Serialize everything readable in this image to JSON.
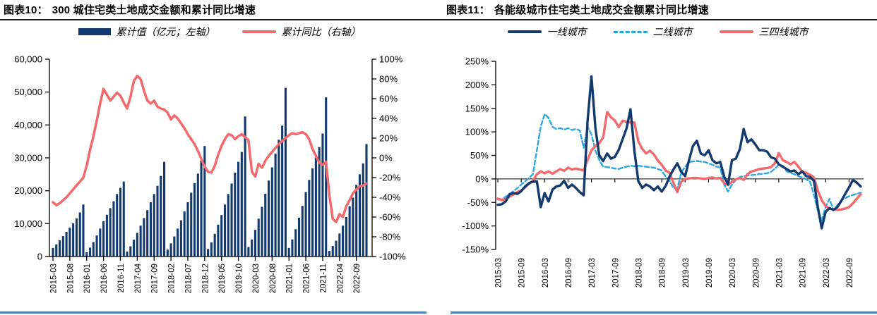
{
  "colors": {
    "navy": "#123a6e",
    "red": "#f4696b",
    "lightblue": "#2ba8e0",
    "axis": "#000000",
    "title_underline": "#1a1a1a",
    "panel_bottom_border": "#4d7ebc"
  },
  "panels": [
    {
      "title_prefix": "图表10：",
      "title": "300 城住宅类土地成交金额和累计同比增速",
      "legend": [
        {
          "label": "累计值（亿元；左轴）",
          "swatch": "bar",
          "color_key": "navy"
        },
        {
          "label": "累计同比（右轴）",
          "swatch": "line",
          "color_key": "red"
        }
      ],
      "chart_data": {
        "type": "bar",
        "subtype": "combo-bar-line",
        "x_tick_labels": [
          "2015-03",
          "2015-08",
          "2016-01",
          "2016-06",
          "2016-11",
          "2017-04",
          "2017-09",
          "2018-02",
          "2018-07",
          "2018-12",
          "2019-05",
          "2019-10",
          "2020-03",
          "2020-08",
          "2021-01",
          "2021-06",
          "2021-11",
          "2022-04",
          "2022-09"
        ],
        "x_tick_every": 5,
        "left_axis": {
          "min": 0,
          "max": 60000,
          "step": 10000,
          "tick_labels": [
            "60,000",
            "50,000",
            "40,000",
            "30,000",
            "20,000",
            "10,000",
            "0"
          ]
        },
        "right_axis": {
          "min": -100,
          "max": 100,
          "step": 20,
          "tick_labels": [
            "100%",
            "80%",
            "60%",
            "40%",
            "20%",
            "0%",
            "-20%",
            "-40%",
            "-60%",
            "-80%",
            "-100%"
          ]
        },
        "bar_series": {
          "name": "累计值（亿元；左轴）",
          "axis": "left",
          "color_key": "navy",
          "values": [
            2600,
            3700,
            4900,
            6200,
            7500,
            8800,
            10100,
            11600,
            13400,
            15800,
            1300,
            2700,
            4400,
            6400,
            8500,
            10700,
            12700,
            14700,
            16800,
            19000,
            20900,
            22800,
            1500,
            3100,
            5100,
            7200,
            9400,
            11700,
            14100,
            16500,
            19000,
            21500,
            24500,
            28800,
            2100,
            4000,
            6100,
            8500,
            11000,
            13700,
            16500,
            19400,
            22300,
            25200,
            29200,
            33600,
            2300,
            4300,
            6900,
            9700,
            12600,
            15800,
            19000,
            22200,
            25500,
            28800,
            31800,
            42600,
            2900,
            5200,
            8100,
            11500,
            15100,
            19100,
            23100,
            27100,
            31300,
            35500,
            39800,
            51300,
            2600,
            5200,
            8300,
            11800,
            15400,
            19600,
            23300,
            26800,
            30100,
            33300,
            37400,
            48400,
            1700,
            3200,
            4800,
            7000,
            9400,
            12000,
            15300,
            17900,
            21800,
            25000,
            28300,
            34200
          ]
        },
        "line_series": {
          "name": "累计同比（右轴）",
          "axis": "right",
          "color_key": "red",
          "values": [
            -45,
            -48,
            -46,
            -43,
            -40,
            -36,
            -32,
            -28,
            -24,
            -20,
            -8,
            8,
            22,
            38,
            55,
            70,
            64,
            58,
            62,
            66,
            63,
            56,
            50,
            62,
            78,
            83,
            80,
            68,
            58,
            55,
            58,
            52,
            50,
            49,
            46,
            39,
            43,
            40,
            35,
            30,
            24,
            19,
            14,
            7,
            -1,
            -9,
            -14,
            -15,
            -8,
            3,
            12,
            19,
            24,
            23,
            19,
            22,
            24,
            21,
            18,
            -14,
            -19,
            -6,
            -10,
            -3,
            2,
            6,
            10,
            14,
            17,
            20,
            23,
            25,
            24,
            25,
            26,
            24,
            19,
            9,
            2,
            -5,
            -7,
            -4,
            -38,
            -62,
            -65,
            -57,
            -60,
            -49,
            -43,
            -36,
            -32,
            -29,
            -28,
            -26
          ]
        }
      }
    },
    {
      "title_prefix": "图表11：",
      "title": "各能级城市住宅类土地成交金额累计同比增速",
      "legend": [
        {
          "label": "一线城市",
          "swatch": "line",
          "color_key": "navy"
        },
        {
          "label": "二线城市",
          "swatch": "dash",
          "color_key": "lightblue"
        },
        {
          "label": "三四线城市",
          "swatch": "line",
          "color_key": "red"
        }
      ],
      "chart_data": {
        "type": "line",
        "x_tick_labels": [
          "2015-03",
          "2015-09",
          "2016-03",
          "2016-09",
          "2017-03",
          "2017-09",
          "2018-03",
          "2018-09",
          "2019-03",
          "2019-09",
          "2020-03",
          "2020-09",
          "2021-03",
          "2021-09",
          "2022-03",
          "2022-09"
        ],
        "x_tick_every": 6,
        "y_axis": {
          "min": -150,
          "max": 250,
          "step": 50,
          "tick_labels": [
            "250%",
            "200%",
            "150%",
            "100%",
            "50%",
            "0%",
            "-50%",
            "-100%",
            "-150%"
          ]
        },
        "series": [
          {
            "name": "一线城市",
            "color_key": "navy",
            "dash": false,
            "values": [
              -55,
              -54,
              -48,
              -33,
              -30,
              -32,
              -26,
              -16,
              -9,
              -6,
              -5,
              -60,
              -30,
              -48,
              -23,
              -16,
              -14,
              -4,
              -19,
              -12,
              -19,
              -28,
              -35,
              123,
              218,
              108,
              50,
              38,
              54,
              43,
              47,
              62,
              85,
              108,
              148,
              60,
              -5,
              -19,
              -12,
              -16,
              -24,
              -16,
              -27,
              -15,
              5,
              20,
              33,
              15,
              6,
              40,
              70,
              81,
              54,
              50,
              61,
              40,
              33,
              36,
              5,
              -12,
              40,
              43,
              63,
              106,
              78,
              84,
              73,
              61,
              61,
              58,
              46,
              43,
              31,
              26,
              21,
              16,
              18,
              10,
              16,
              6,
              4,
              -4,
              -60,
              -105,
              -70,
              -62,
              -66,
              -60,
              -47,
              -32,
              -18,
              -2,
              -8,
              -16
            ]
          },
          {
            "name": "二线城市",
            "color_key": "lightblue",
            "dash": true,
            "values": [
              -44,
              -43,
              -38,
              -32,
              -26,
              -20,
              -12,
              -5,
              2,
              10,
              61,
              111,
              138,
              130,
              111,
              106,
              108,
              105,
              108,
              104,
              106,
              103,
              66,
              111,
              95,
              60,
              40,
              26,
              25,
              24,
              22,
              21,
              24,
              26,
              28,
              27,
              28,
              27,
              26,
              25,
              24,
              21,
              18,
              5,
              -4,
              -19,
              -21,
              13,
              26,
              36,
              37,
              38,
              37,
              36,
              33,
              30,
              26,
              24,
              -12,
              -27,
              -12,
              -2,
              4,
              6,
              7,
              8,
              9,
              10,
              11,
              12,
              15,
              22,
              30,
              28,
              16,
              13,
              10,
              6,
              3,
              -1,
              -6,
              -34,
              -67,
              -88,
              -60,
              -42,
              -67,
              -56,
              -46,
              -41,
              -37,
              -34,
              -32,
              -29
            ]
          },
          {
            "name": "三四线城市",
            "color_key": "red",
            "dash": false,
            "values": [
              -42,
              -45,
              -43,
              -38,
              -33,
              -28,
              -24,
              -18,
              -10,
              -4,
              10,
              16,
              12,
              16,
              11,
              16,
              21,
              17,
              24,
              20,
              22,
              20,
              18,
              40,
              61,
              70,
              76,
              88,
              142,
              131,
              124,
              110,
              124,
              121,
              120,
              120,
              80,
              64,
              54,
              60,
              52,
              39,
              30,
              18,
              13,
              -8,
              -28,
              -6,
              0,
              1,
              2,
              2,
              1,
              0,
              2,
              3,
              1,
              2,
              -9,
              -13,
              -6,
              -1,
              2,
              -2,
              10,
              16,
              18,
              21,
              22,
              23,
              25,
              33,
              55,
              40,
              36,
              31,
              36,
              26,
              16,
              13,
              9,
              3,
              -25,
              -45,
              -58,
              -63,
              -65,
              -66,
              -65,
              -63,
              -60,
              -52,
              -42,
              -33
            ]
          }
        ]
      }
    }
  ]
}
